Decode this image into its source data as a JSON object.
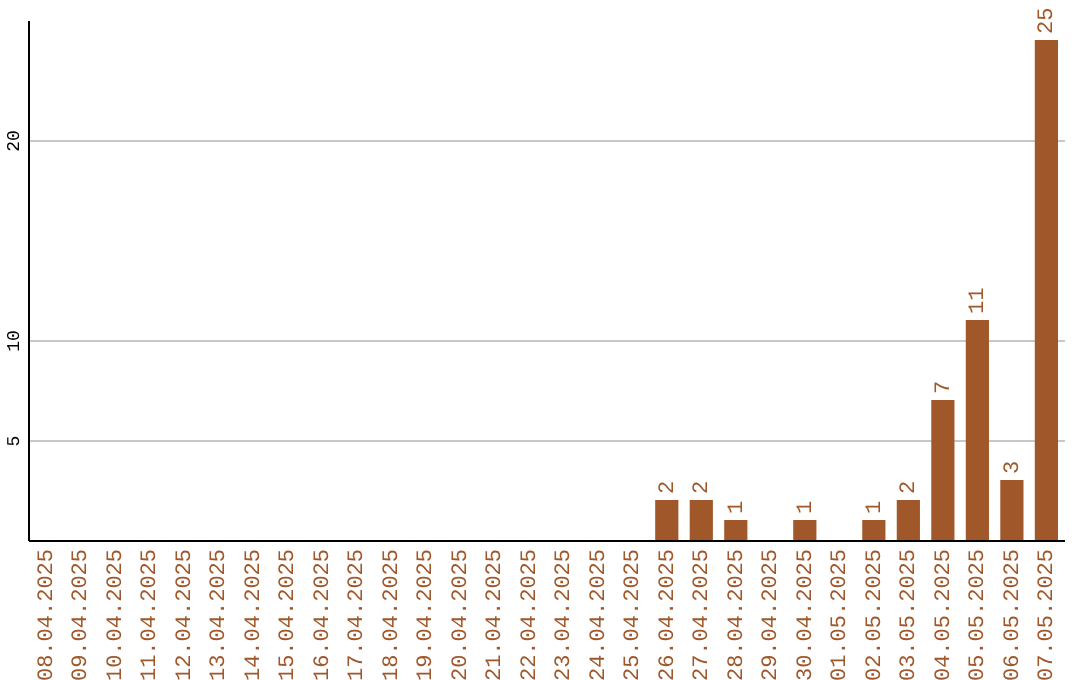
{
  "chart_data": {
    "type": "bar",
    "categories": [
      "08.04.2025",
      "09.04.2025",
      "10.04.2025",
      "11.04.2025",
      "12.04.2025",
      "13.04.2025",
      "14.04.2025",
      "15.04.2025",
      "16.04.2025",
      "17.04.2025",
      "18.04.2025",
      "19.04.2025",
      "20.04.2025",
      "21.04.2025",
      "22.04.2025",
      "23.04.2025",
      "24.04.2025",
      "25.04.2025",
      "26.04.2025",
      "27.04.2025",
      "28.04.2025",
      "29.04.2025",
      "30.04.2025",
      "01.05.2025",
      "02.05.2025",
      "03.05.2025",
      "04.05.2025",
      "05.05.2025",
      "06.05.2025",
      "07.05.2025"
    ],
    "values": [
      0,
      0,
      0,
      0,
      0,
      0,
      0,
      0,
      0,
      0,
      0,
      0,
      0,
      0,
      0,
      0,
      0,
      0,
      2,
      2,
      1,
      0,
      1,
      0,
      1,
      2,
      7,
      11,
      3,
      25
    ],
    "value_labels": [
      null,
      null,
      null,
      null,
      null,
      null,
      null,
      null,
      null,
      null,
      null,
      null,
      null,
      null,
      null,
      null,
      null,
      null,
      "2",
      "2",
      "1",
      null,
      "1",
      null,
      "1",
      "2",
      "7",
      "11",
      "3",
      "25"
    ],
    "color": "#a0582a",
    "ylim": [
      0,
      26
    ],
    "yticks": [
      5,
      10,
      20
    ],
    "grid": "y"
  }
}
